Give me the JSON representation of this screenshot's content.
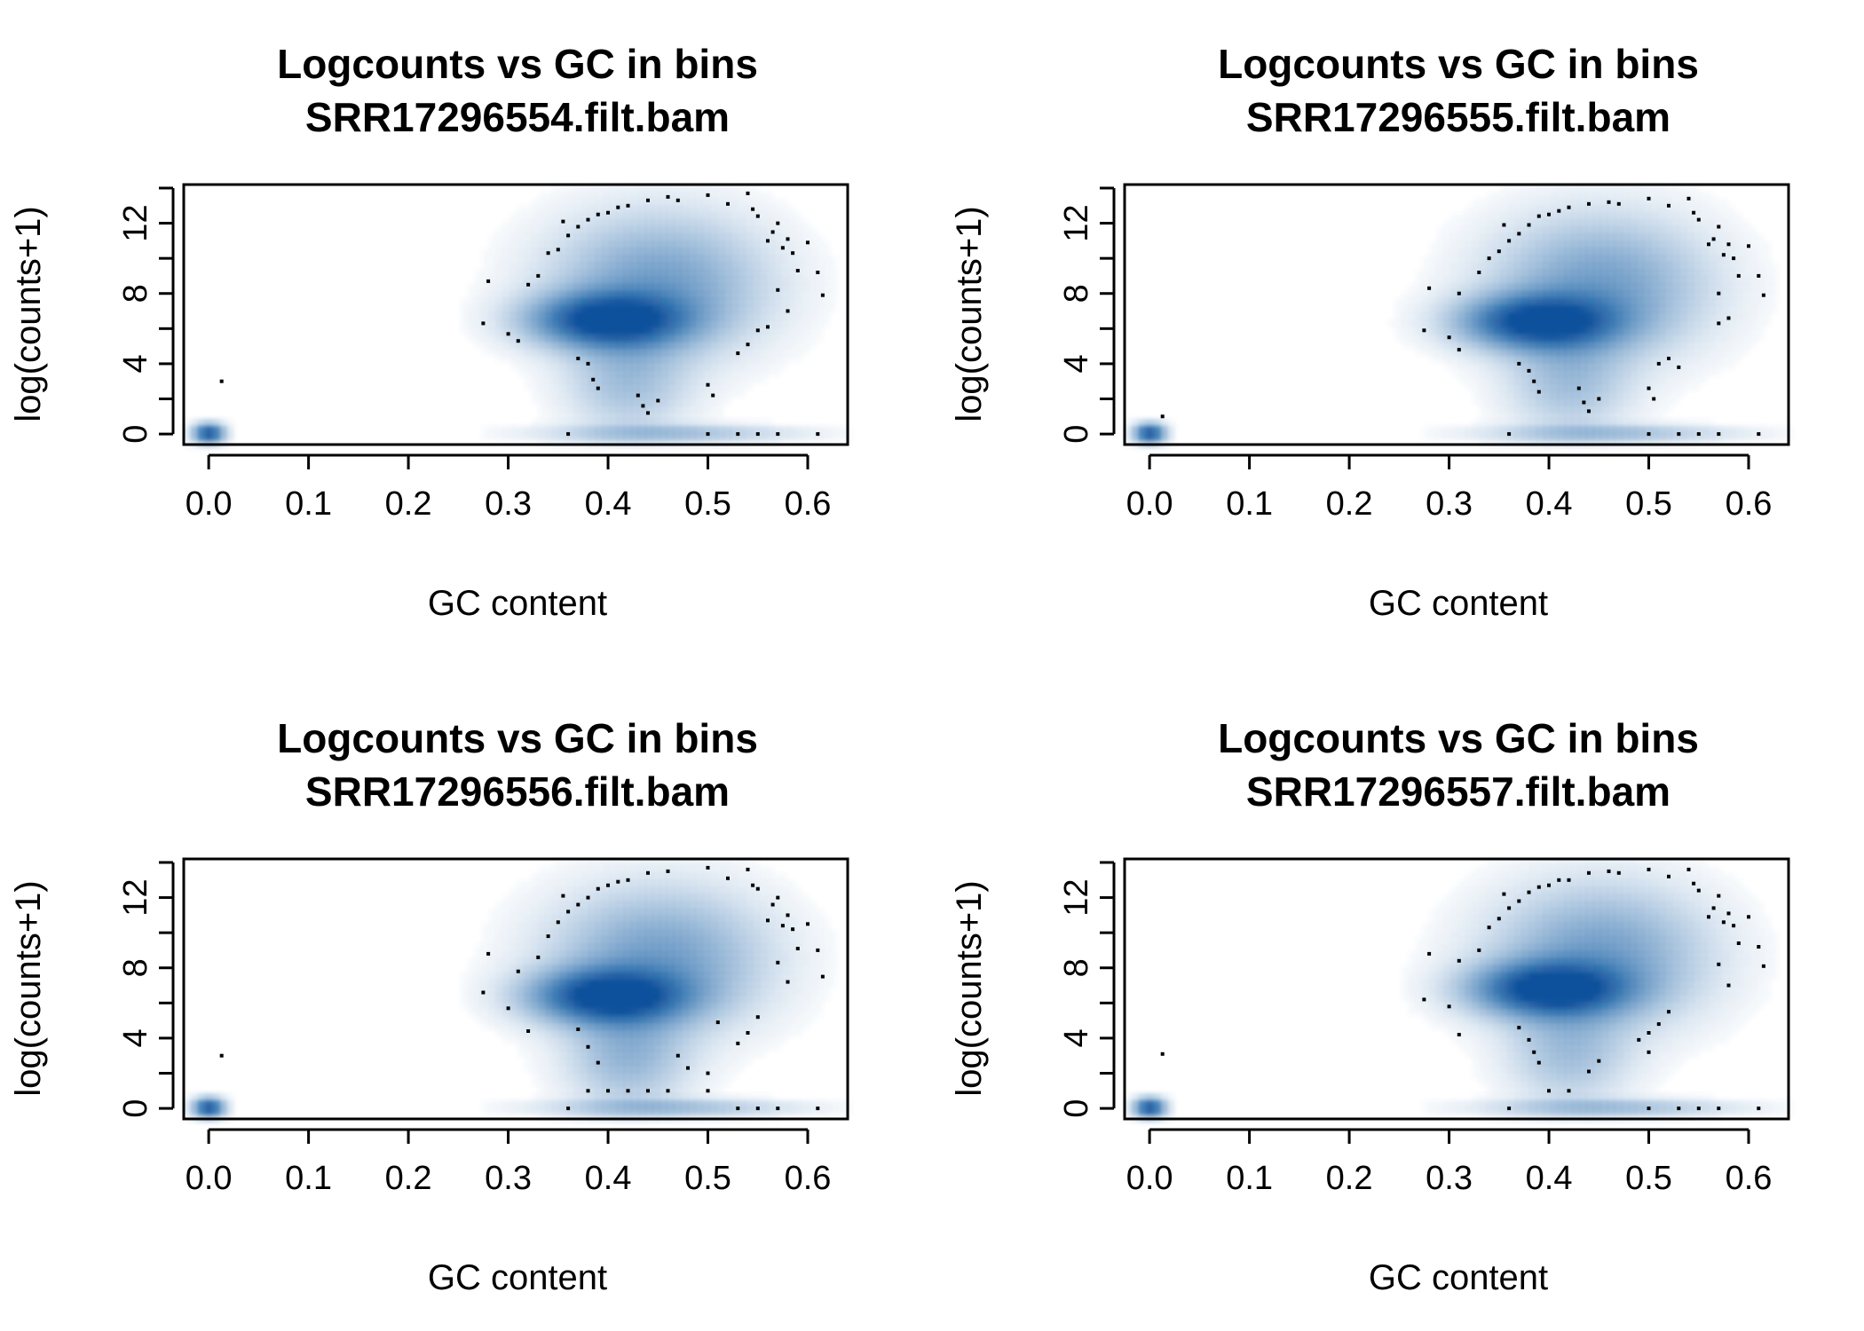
{
  "chart_data": [
    {
      "type": "scatter",
      "smoothed_density": true,
      "title": "Logcounts vs GC in bins",
      "subtitle": "SRR17296554.filt.bam",
      "xlabel": "GC content",
      "ylabel": "log(counts+1)",
      "xlim": [
        -0.025,
        0.64
      ],
      "ylim": [
        -0.6,
        14.2
      ],
      "xticks": [
        "0.0",
        "0.1",
        "0.2",
        "0.3",
        "0.4",
        "0.5",
        "0.6"
      ],
      "xtick_values": [
        0.0,
        0.1,
        0.2,
        0.3,
        0.4,
        0.5,
        0.6
      ],
      "yticks": [
        "0",
        "4",
        "8",
        "12"
      ],
      "ytick_values": [
        0,
        4,
        8,
        12
      ],
      "ytick_minor": [
        2,
        6,
        10,
        14
      ],
      "color": "#08519c",
      "density_clusters": [
        {
          "x": 0.0,
          "y": 0.05,
          "sx": 0.01,
          "sy": 0.35,
          "w": 1.0
        },
        {
          "x": 0.4,
          "y": 6.5,
          "sx": 0.05,
          "sy": 1.0,
          "w": 1.0
        },
        {
          "x": 0.45,
          "y": 8.5,
          "sx": 0.07,
          "sy": 2.6,
          "w": 0.45
        },
        {
          "x": 0.42,
          "y": 3.0,
          "sx": 0.04,
          "sy": 2.0,
          "w": 0.25
        },
        {
          "x": 0.46,
          "y": 0.05,
          "sx": 0.08,
          "sy": 0.3,
          "w": 0.3
        }
      ],
      "outliers": [
        [
          0.013,
          3.0
        ],
        [
          0.28,
          8.7
        ],
        [
          0.275,
          6.3
        ],
        [
          0.3,
          5.7
        ],
        [
          0.31,
          5.3
        ],
        [
          0.32,
          8.5
        ],
        [
          0.33,
          9.0
        ],
        [
          0.34,
          10.3
        ],
        [
          0.35,
          10.5
        ],
        [
          0.355,
          12.1
        ],
        [
          0.36,
          11.3
        ],
        [
          0.37,
          11.8
        ],
        [
          0.38,
          12.2
        ],
        [
          0.39,
          12.5
        ],
        [
          0.4,
          12.6
        ],
        [
          0.41,
          12.9
        ],
        [
          0.42,
          13.0
        ],
        [
          0.44,
          13.3
        ],
        [
          0.46,
          13.5
        ],
        [
          0.47,
          13.3
        ],
        [
          0.5,
          13.6
        ],
        [
          0.52,
          13.1
        ],
        [
          0.54,
          13.7
        ],
        [
          0.545,
          12.8
        ],
        [
          0.55,
          12.4
        ],
        [
          0.56,
          11.0
        ],
        [
          0.565,
          11.5
        ],
        [
          0.57,
          12.0
        ],
        [
          0.575,
          10.6
        ],
        [
          0.58,
          11.1
        ],
        [
          0.585,
          10.3
        ],
        [
          0.59,
          9.3
        ],
        [
          0.6,
          10.9
        ],
        [
          0.61,
          9.2
        ],
        [
          0.615,
          7.9
        ],
        [
          0.57,
          8.2
        ],
        [
          0.58,
          7.0
        ],
        [
          0.56,
          6.1
        ],
        [
          0.55,
          5.9
        ],
        [
          0.54,
          5.1
        ],
        [
          0.53,
          4.6
        ],
        [
          0.37,
          4.3
        ],
        [
          0.38,
          4.0
        ],
        [
          0.385,
          3.1
        ],
        [
          0.39,
          2.6
        ],
        [
          0.43,
          2.2
        ],
        [
          0.435,
          1.6
        ],
        [
          0.44,
          1.2
        ],
        [
          0.45,
          1.9
        ],
        [
          0.5,
          2.8
        ],
        [
          0.505,
          2.2
        ],
        [
          0.36,
          0.0
        ],
        [
          0.5,
          0.0
        ],
        [
          0.53,
          0.0
        ],
        [
          0.55,
          0.0
        ],
        [
          0.57,
          0.0
        ],
        [
          0.61,
          0.0
        ]
      ]
    },
    {
      "type": "scatter",
      "smoothed_density": true,
      "title": "Logcounts vs GC in bins",
      "subtitle": "SRR17296555.filt.bam",
      "xlabel": "GC content",
      "ylabel": "log(counts+1)",
      "xlim": [
        -0.025,
        0.64
      ],
      "ylim": [
        -0.6,
        14.2
      ],
      "xticks": [
        "0.0",
        "0.1",
        "0.2",
        "0.3",
        "0.4",
        "0.5",
        "0.6"
      ],
      "xtick_values": [
        0.0,
        0.1,
        0.2,
        0.3,
        0.4,
        0.5,
        0.6
      ],
      "yticks": [
        "0",
        "4",
        "8",
        "12"
      ],
      "ytick_values": [
        0,
        4,
        8,
        12
      ],
      "ytick_minor": [
        2,
        6,
        10,
        14
      ],
      "color": "#08519c",
      "density_clusters": [
        {
          "x": 0.0,
          "y": 0.05,
          "sx": 0.01,
          "sy": 0.35,
          "w": 1.0
        },
        {
          "x": 0.39,
          "y": 6.4,
          "sx": 0.05,
          "sy": 1.0,
          "w": 1.0
        },
        {
          "x": 0.45,
          "y": 8.4,
          "sx": 0.07,
          "sy": 2.6,
          "w": 0.45
        },
        {
          "x": 0.42,
          "y": 3.0,
          "sx": 0.04,
          "sy": 2.0,
          "w": 0.25
        },
        {
          "x": 0.46,
          "y": 0.05,
          "sx": 0.08,
          "sy": 0.3,
          "w": 0.3
        }
      ],
      "outliers": [
        [
          0.013,
          1.0
        ],
        [
          0.28,
          8.3
        ],
        [
          0.275,
          5.9
        ],
        [
          0.3,
          5.5
        ],
        [
          0.31,
          4.8
        ],
        [
          0.31,
          8.0
        ],
        [
          0.33,
          9.2
        ],
        [
          0.34,
          10.0
        ],
        [
          0.35,
          10.4
        ],
        [
          0.355,
          11.9
        ],
        [
          0.36,
          11.0
        ],
        [
          0.37,
          11.4
        ],
        [
          0.38,
          11.9
        ],
        [
          0.39,
          12.4
        ],
        [
          0.4,
          12.5
        ],
        [
          0.41,
          12.7
        ],
        [
          0.42,
          12.9
        ],
        [
          0.44,
          13.1
        ],
        [
          0.46,
          13.2
        ],
        [
          0.47,
          13.1
        ],
        [
          0.5,
          13.4
        ],
        [
          0.52,
          13.0
        ],
        [
          0.54,
          13.4
        ],
        [
          0.545,
          12.6
        ],
        [
          0.55,
          12.2
        ],
        [
          0.56,
          10.8
        ],
        [
          0.565,
          11.1
        ],
        [
          0.57,
          11.8
        ],
        [
          0.575,
          10.2
        ],
        [
          0.58,
          10.8
        ],
        [
          0.585,
          10.0
        ],
        [
          0.59,
          9.0
        ],
        [
          0.6,
          10.7
        ],
        [
          0.61,
          9.0
        ],
        [
          0.615,
          7.9
        ],
        [
          0.57,
          8.0
        ],
        [
          0.58,
          6.6
        ],
        [
          0.57,
          6.3
        ],
        [
          0.52,
          4.3
        ],
        [
          0.51,
          4.0
        ],
        [
          0.53,
          3.8
        ],
        [
          0.37,
          4.0
        ],
        [
          0.38,
          3.6
        ],
        [
          0.385,
          3.0
        ],
        [
          0.39,
          2.4
        ],
        [
          0.43,
          2.6
        ],
        [
          0.435,
          1.8
        ],
        [
          0.44,
          1.3
        ],
        [
          0.45,
          2.0
        ],
        [
          0.5,
          2.6
        ],
        [
          0.505,
          2.0
        ],
        [
          0.36,
          0.0
        ],
        [
          0.5,
          0.0
        ],
        [
          0.53,
          0.0
        ],
        [
          0.55,
          0.0
        ],
        [
          0.57,
          0.0
        ],
        [
          0.61,
          0.0
        ]
      ]
    },
    {
      "type": "scatter",
      "smoothed_density": true,
      "title": "Logcounts vs GC in bins",
      "subtitle": "SRR17296556.filt.bam",
      "xlabel": "GC content",
      "ylabel": "log(counts+1)",
      "xlim": [
        -0.025,
        0.64
      ],
      "ylim": [
        -0.6,
        14.2
      ],
      "xticks": [
        "0.0",
        "0.1",
        "0.2",
        "0.3",
        "0.4",
        "0.5",
        "0.6"
      ],
      "xtick_values": [
        0.0,
        0.1,
        0.2,
        0.3,
        0.4,
        0.5,
        0.6
      ],
      "yticks": [
        "0",
        "4",
        "8",
        "12"
      ],
      "ytick_values": [
        0,
        4,
        8,
        12
      ],
      "ytick_minor": [
        2,
        6,
        10,
        14
      ],
      "color": "#08519c",
      "density_clusters": [
        {
          "x": 0.0,
          "y": 0.05,
          "sx": 0.01,
          "sy": 0.35,
          "w": 1.0
        },
        {
          "x": 0.4,
          "y": 6.4,
          "sx": 0.05,
          "sy": 1.0,
          "w": 1.0
        },
        {
          "x": 0.45,
          "y": 8.5,
          "sx": 0.07,
          "sy": 2.6,
          "w": 0.45
        },
        {
          "x": 0.42,
          "y": 3.0,
          "sx": 0.04,
          "sy": 2.0,
          "w": 0.3
        },
        {
          "x": 0.46,
          "y": 0.05,
          "sx": 0.08,
          "sy": 0.3,
          "w": 0.3
        }
      ],
      "outliers": [
        [
          0.013,
          3.0
        ],
        [
          0.28,
          8.8
        ],
        [
          0.275,
          6.6
        ],
        [
          0.3,
          5.7
        ],
        [
          0.32,
          4.4
        ],
        [
          0.31,
          7.8
        ],
        [
          0.33,
          8.6
        ],
        [
          0.34,
          9.8
        ],
        [
          0.35,
          10.6
        ],
        [
          0.355,
          12.1
        ],
        [
          0.36,
          11.2
        ],
        [
          0.37,
          11.6
        ],
        [
          0.38,
          12.0
        ],
        [
          0.39,
          12.5
        ],
        [
          0.4,
          12.7
        ],
        [
          0.41,
          12.9
        ],
        [
          0.42,
          13.0
        ],
        [
          0.44,
          13.4
        ],
        [
          0.46,
          13.5
        ],
        [
          0.5,
          13.7
        ],
        [
          0.52,
          13.1
        ],
        [
          0.54,
          13.6
        ],
        [
          0.545,
          12.7
        ],
        [
          0.55,
          12.5
        ],
        [
          0.56,
          10.7
        ],
        [
          0.565,
          11.6
        ],
        [
          0.57,
          12.0
        ],
        [
          0.575,
          10.4
        ],
        [
          0.58,
          11.0
        ],
        [
          0.585,
          10.2
        ],
        [
          0.59,
          9.1
        ],
        [
          0.6,
          10.5
        ],
        [
          0.61,
          9.0
        ],
        [
          0.615,
          7.5
        ],
        [
          0.57,
          8.3
        ],
        [
          0.58,
          7.2
        ],
        [
          0.55,
          5.2
        ],
        [
          0.54,
          4.3
        ],
        [
          0.53,
          3.7
        ],
        [
          0.51,
          4.9
        ],
        [
          0.47,
          3.0
        ],
        [
          0.48,
          2.3
        ],
        [
          0.5,
          2.0
        ],
        [
          0.37,
          4.5
        ],
        [
          0.38,
          3.5
        ],
        [
          0.39,
          2.6
        ],
        [
          0.38,
          1.0
        ],
        [
          0.4,
          1.0
        ],
        [
          0.42,
          1.0
        ],
        [
          0.44,
          1.0
        ],
        [
          0.46,
          1.0
        ],
        [
          0.5,
          1.0
        ],
        [
          0.36,
          0.0
        ],
        [
          0.53,
          0.0
        ],
        [
          0.55,
          0.0
        ],
        [
          0.57,
          0.0
        ],
        [
          0.61,
          0.0
        ]
      ]
    },
    {
      "type": "scatter",
      "smoothed_density": true,
      "title": "Logcounts vs GC in bins",
      "subtitle": "SRR17296557.filt.bam",
      "xlabel": "GC content",
      "ylabel": "log(counts+1)",
      "xlim": [
        -0.025,
        0.64
      ],
      "ylim": [
        -0.6,
        14.2
      ],
      "xticks": [
        "0.0",
        "0.1",
        "0.2",
        "0.3",
        "0.4",
        "0.5",
        "0.6"
      ],
      "xtick_values": [
        0.0,
        0.1,
        0.2,
        0.3,
        0.4,
        0.5,
        0.6
      ],
      "yticks": [
        "0",
        "4",
        "8",
        "12"
      ],
      "ytick_values": [
        0,
        4,
        8,
        12
      ],
      "ytick_minor": [
        2,
        6,
        10,
        14
      ],
      "color": "#08519c",
      "density_clusters": [
        {
          "x": 0.0,
          "y": 0.05,
          "sx": 0.01,
          "sy": 0.35,
          "w": 1.0
        },
        {
          "x": 0.4,
          "y": 6.8,
          "sx": 0.05,
          "sy": 1.0,
          "w": 1.0
        },
        {
          "x": 0.45,
          "y": 8.7,
          "sx": 0.07,
          "sy": 2.6,
          "w": 0.45
        },
        {
          "x": 0.42,
          "y": 3.2,
          "sx": 0.04,
          "sy": 2.0,
          "w": 0.25
        },
        {
          "x": 0.46,
          "y": 0.05,
          "sx": 0.08,
          "sy": 0.3,
          "w": 0.3
        }
      ],
      "outliers": [
        [
          0.013,
          3.1
        ],
        [
          0.28,
          8.8
        ],
        [
          0.275,
          6.2
        ],
        [
          0.3,
          5.8
        ],
        [
          0.31,
          4.2
        ],
        [
          0.31,
          8.4
        ],
        [
          0.33,
          9.0
        ],
        [
          0.34,
          10.3
        ],
        [
          0.35,
          10.8
        ],
        [
          0.355,
          12.2
        ],
        [
          0.36,
          11.4
        ],
        [
          0.37,
          11.8
        ],
        [
          0.38,
          12.3
        ],
        [
          0.39,
          12.6
        ],
        [
          0.4,
          12.7
        ],
        [
          0.41,
          13.0
        ],
        [
          0.42,
          13.0
        ],
        [
          0.44,
          13.4
        ],
        [
          0.46,
          13.5
        ],
        [
          0.47,
          13.4
        ],
        [
          0.5,
          13.6
        ],
        [
          0.52,
          13.2
        ],
        [
          0.54,
          13.6
        ],
        [
          0.545,
          12.8
        ],
        [
          0.55,
          12.4
        ],
        [
          0.56,
          10.9
        ],
        [
          0.565,
          11.4
        ],
        [
          0.57,
          12.1
        ],
        [
          0.575,
          10.6
        ],
        [
          0.58,
          11.1
        ],
        [
          0.585,
          10.4
        ],
        [
          0.59,
          9.4
        ],
        [
          0.6,
          10.9
        ],
        [
          0.61,
          9.2
        ],
        [
          0.615,
          8.1
        ],
        [
          0.57,
          8.2
        ],
        [
          0.58,
          7.0
        ],
        [
          0.52,
          5.5
        ],
        [
          0.51,
          4.8
        ],
        [
          0.5,
          4.3
        ],
        [
          0.49,
          3.9
        ],
        [
          0.5,
          3.2
        ],
        [
          0.37,
          4.6
        ],
        [
          0.38,
          3.9
        ],
        [
          0.385,
          3.2
        ],
        [
          0.39,
          2.6
        ],
        [
          0.4,
          1.0
        ],
        [
          0.42,
          1.0
        ],
        [
          0.44,
          2.1
        ],
        [
          0.45,
          2.7
        ],
        [
          0.36,
          0.0
        ],
        [
          0.5,
          0.0
        ],
        [
          0.53,
          0.0
        ],
        [
          0.55,
          0.0
        ],
        [
          0.57,
          0.0
        ],
        [
          0.61,
          0.0
        ]
      ]
    }
  ]
}
